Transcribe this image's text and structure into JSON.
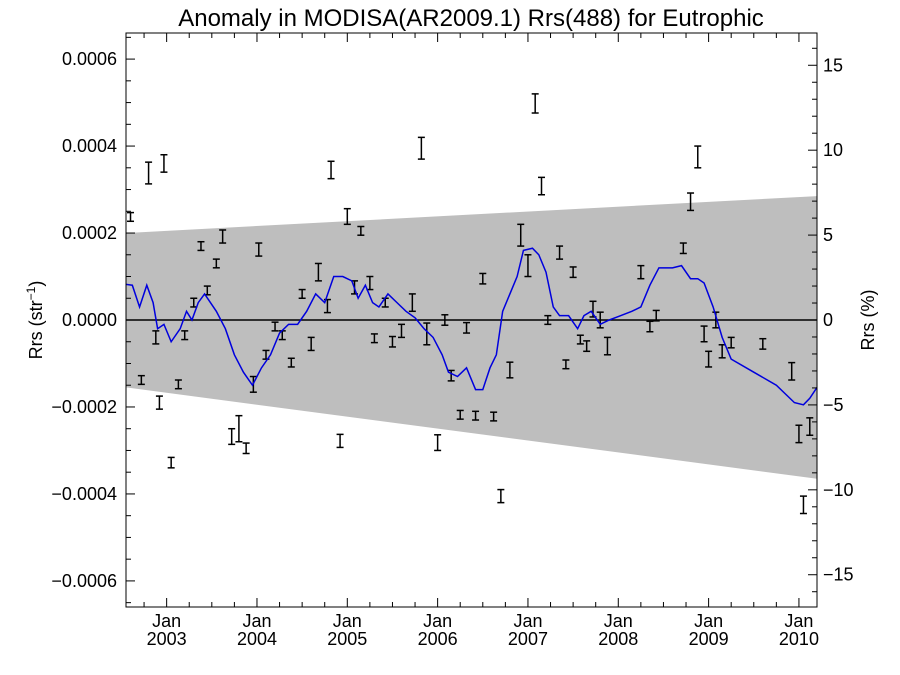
{
  "chart_data": {
    "type": "scatter",
    "title": "Anomaly in MODISA(AR2009.1) Rrs(488) for Eutrophic",
    "ylabel_left_main": "Rrs (str",
    "ylabel_left_sup": "−1",
    "ylabel_left_end": ")",
    "ylabel_right": "Rrs (%)",
    "xlim": [
      2002.55,
      2010.2
    ],
    "ylim_left": [
      -0.00066,
      0.00066
    ],
    "ylim_right": [
      -16.9,
      16.9
    ],
    "y_ticks_left": [
      {
        "value": 0.0006,
        "label": "0.0006"
      },
      {
        "value": 0.0004,
        "label": "0.0004"
      },
      {
        "value": 0.0002,
        "label": "0.0002"
      },
      {
        "value": 0.0,
        "label": "0.0000"
      },
      {
        "value": -0.0002,
        "label": "−0.0002"
      },
      {
        "value": -0.0004,
        "label": "−0.0004"
      },
      {
        "value": -0.0006,
        "label": "−0.0006"
      }
    ],
    "y_ticks_right": [
      {
        "value": 15,
        "label": "15"
      },
      {
        "value": 10,
        "label": "10"
      },
      {
        "value": 5,
        "label": "5"
      },
      {
        "value": 0,
        "label": "0"
      },
      {
        "value": -5,
        "label": "−5"
      },
      {
        "value": -10,
        "label": "−10"
      },
      {
        "value": -15,
        "label": "−15"
      }
    ],
    "x_ticks": [
      {
        "value": 2003.0,
        "month": "Jan",
        "year": "2003"
      },
      {
        "value": 2004.0,
        "month": "Jan",
        "year": "2004"
      },
      {
        "value": 2005.0,
        "month": "Jan",
        "year": "2005"
      },
      {
        "value": 2006.0,
        "month": "Jan",
        "year": "2006"
      },
      {
        "value": 2007.0,
        "month": "Jan",
        "year": "2007"
      },
      {
        "value": 2008.0,
        "month": "Jan",
        "year": "2008"
      },
      {
        "value": 2009.0,
        "month": "Jan",
        "year": "2009"
      },
      {
        "value": 2010.0,
        "month": "Jan",
        "year": "2010"
      }
    ],
    "band": {
      "upper": [
        [
          2002.55,
          0.0002
        ],
        [
          2010.2,
          0.000285
        ]
      ],
      "lower": [
        [
          2002.55,
          -0.000155
        ],
        [
          2010.2,
          -0.000365
        ]
      ]
    },
    "reference_line": 0.0,
    "points": [
      {
        "x": 2002.6,
        "y": 0.000237,
        "err": 1e-05
      },
      {
        "x": 2002.72,
        "y": -0.000138,
        "err": 1e-05
      },
      {
        "x": 2002.8,
        "y": 0.000338,
        "err": 2.5e-05
      },
      {
        "x": 2002.88,
        "y": -4e-05,
        "err": 1.5e-05
      },
      {
        "x": 2002.92,
        "y": -0.00019,
        "err": 1.5e-05
      },
      {
        "x": 2002.97,
        "y": 0.00036,
        "err": 2e-05
      },
      {
        "x": 2003.05,
        "y": -0.000328,
        "err": 1.2e-05
      },
      {
        "x": 2003.13,
        "y": -0.000148,
        "err": 1e-05
      },
      {
        "x": 2003.2,
        "y": -3.5e-05,
        "err": 1e-05
      },
      {
        "x": 2003.3,
        "y": 4e-05,
        "err": 1e-05
      },
      {
        "x": 2003.38,
        "y": 0.00017,
        "err": 1e-05
      },
      {
        "x": 2003.45,
        "y": 6.8e-05,
        "err": 1e-05
      },
      {
        "x": 2003.55,
        "y": 0.00013,
        "err": 1e-05
      },
      {
        "x": 2003.62,
        "y": 0.000192,
        "err": 1.5e-05
      },
      {
        "x": 2003.72,
        "y": -0.000268,
        "err": 1.8e-05
      },
      {
        "x": 2003.8,
        "y": -0.00025,
        "err": 3e-05
      },
      {
        "x": 2003.88,
        "y": -0.000295,
        "err": 1.2e-05
      },
      {
        "x": 2003.96,
        "y": -0.000148,
        "err": 1.8e-05
      },
      {
        "x": 2004.02,
        "y": 0.000162,
        "err": 1.5e-05
      },
      {
        "x": 2004.1,
        "y": -8e-05,
        "err": 1e-05
      },
      {
        "x": 2004.2,
        "y": -1.5e-05,
        "err": 1e-05
      },
      {
        "x": 2004.28,
        "y": -3.5e-05,
        "err": 1e-05
      },
      {
        "x": 2004.38,
        "y": -9.8e-05,
        "err": 1e-05
      },
      {
        "x": 2004.5,
        "y": 6e-05,
        "err": 1e-05
      },
      {
        "x": 2004.6,
        "y": -5.5e-05,
        "err": 1.5e-05
      },
      {
        "x": 2004.68,
        "y": 0.00011,
        "err": 2e-05
      },
      {
        "x": 2004.78,
        "y": 3.2e-05,
        "err": 1.5e-05
      },
      {
        "x": 2004.82,
        "y": 0.000345,
        "err": 2e-05
      },
      {
        "x": 2004.92,
        "y": -0.000278,
        "err": 1.5e-05
      },
      {
        "x": 2005.0,
        "y": 0.000238,
        "err": 1.8e-05
      },
      {
        "x": 2005.08,
        "y": 7.5e-05,
        "err": 1.5e-05
      },
      {
        "x": 2005.15,
        "y": 0.000205,
        "err": 1e-05
      },
      {
        "x": 2005.25,
        "y": 8.5e-05,
        "err": 1.5e-05
      },
      {
        "x": 2005.3,
        "y": -4.2e-05,
        "err": 1e-05
      },
      {
        "x": 2005.42,
        "y": 4e-05,
        "err": 1e-05
      },
      {
        "x": 2005.5,
        "y": -5e-05,
        "err": 1.2e-05
      },
      {
        "x": 2005.6,
        "y": -2.5e-05,
        "err": 1.5e-05
      },
      {
        "x": 2005.72,
        "y": 4e-05,
        "err": 2e-05
      },
      {
        "x": 2005.82,
        "y": 0.000395,
        "err": 2.5e-05
      },
      {
        "x": 2005.88,
        "y": -3.2e-05,
        "err": 2.5e-05
      },
      {
        "x": 2006.0,
        "y": -0.000282,
        "err": 1.8e-05
      },
      {
        "x": 2006.08,
        "y": 0.0,
        "err": 1.2e-05
      },
      {
        "x": 2006.15,
        "y": -0.000128,
        "err": 1.2e-05
      },
      {
        "x": 2006.25,
        "y": -0.000218,
        "err": 1e-05
      },
      {
        "x": 2006.32,
        "y": -1.8e-05,
        "err": 1.2e-05
      },
      {
        "x": 2006.42,
        "y": -0.00022,
        "err": 1e-05
      },
      {
        "x": 2006.5,
        "y": 9.5e-05,
        "err": 1.2e-05
      },
      {
        "x": 2006.62,
        "y": -0.000222,
        "err": 1e-05
      },
      {
        "x": 2006.7,
        "y": -0.000405,
        "err": 1.5e-05
      },
      {
        "x": 2006.8,
        "y": -0.000115,
        "err": 1.8e-05
      },
      {
        "x": 2006.92,
        "y": 0.000195,
        "err": 2.5e-05
      },
      {
        "x": 2007.0,
        "y": 0.000125,
        "err": 2.5e-05
      },
      {
        "x": 2007.08,
        "y": 0.000498,
        "err": 2.2e-05
      },
      {
        "x": 2007.15,
        "y": 0.000308,
        "err": 2e-05
      },
      {
        "x": 2007.22,
        "y": 0.0,
        "err": 1e-05
      },
      {
        "x": 2007.35,
        "y": 0.000155,
        "err": 1.5e-05
      },
      {
        "x": 2007.42,
        "y": -0.000102,
        "err": 1e-05
      },
      {
        "x": 2007.5,
        "y": 0.00011,
        "err": 1.2e-05
      },
      {
        "x": 2007.58,
        "y": -4.5e-05,
        "err": 1e-05
      },
      {
        "x": 2007.65,
        "y": -6e-05,
        "err": 1.2e-05
      },
      {
        "x": 2007.72,
        "y": 2.5e-05,
        "err": 1.8e-05
      },
      {
        "x": 2007.8,
        "y": 0.0,
        "err": 1.8e-05
      },
      {
        "x": 2007.88,
        "y": -6e-05,
        "err": 2e-05
      },
      {
        "x": 2008.25,
        "y": 0.00011,
        "err": 1.5e-05
      },
      {
        "x": 2008.35,
        "y": -1.5e-05,
        "err": 1.2e-05
      },
      {
        "x": 2008.42,
        "y": 1e-05,
        "err": 1.2e-05
      },
      {
        "x": 2008.72,
        "y": 0.000165,
        "err": 1.2e-05
      },
      {
        "x": 2008.8,
        "y": 0.000272,
        "err": 2e-05
      },
      {
        "x": 2008.88,
        "y": 0.000375,
        "err": 2.5e-05
      },
      {
        "x": 2008.95,
        "y": -3.2e-05,
        "err": 1.8e-05
      },
      {
        "x": 2009.0,
        "y": -9e-05,
        "err": 1.8e-05
      },
      {
        "x": 2009.08,
        "y": -0.0,
        "err": 1.8e-05
      },
      {
        "x": 2009.15,
        "y": -7.2e-05,
        "err": 1.5e-05
      },
      {
        "x": 2009.25,
        "y": -5.2e-05,
        "err": 1.2e-05
      },
      {
        "x": 2009.6,
        "y": -5.5e-05,
        "err": 1.2e-05
      },
      {
        "x": 2009.92,
        "y": -0.000118,
        "err": 2e-05
      },
      {
        "x": 2010.0,
        "y": -0.000262,
        "err": 2e-05
      },
      {
        "x": 2010.05,
        "y": -0.000425,
        "err": 2e-05
      },
      {
        "x": 2010.12,
        "y": -0.000245,
        "err": 2e-05
      }
    ],
    "smooth_line": [
      [
        2002.55,
        8.2e-05
      ],
      [
        2002.62,
        8e-05
      ],
      [
        2002.7,
        3e-05
      ],
      [
        2002.78,
        8e-05
      ],
      [
        2002.85,
        4e-05
      ],
      [
        2002.9,
        -2e-05
      ],
      [
        2002.97,
        -1e-05
      ],
      [
        2003.05,
        -5e-05
      ],
      [
        2003.15,
        -2e-05
      ],
      [
        2003.22,
        2e-05
      ],
      [
        2003.28,
        0.0
      ],
      [
        2003.35,
        4e-05
      ],
      [
        2003.42,
        6e-05
      ],
      [
        2003.55,
        2e-05
      ],
      [
        2003.65,
        -2e-05
      ],
      [
        2003.75,
        -8e-05
      ],
      [
        2003.85,
        -0.00012
      ],
      [
        2003.95,
        -0.00015
      ],
      [
        2004.05,
        -0.00011
      ],
      [
        2004.15,
        -8e-05
      ],
      [
        2004.25,
        -3e-05
      ],
      [
        2004.35,
        -1e-05
      ],
      [
        2004.45,
        -1e-05
      ],
      [
        2004.55,
        2e-05
      ],
      [
        2004.65,
        6e-05
      ],
      [
        2004.75,
        4e-05
      ],
      [
        2004.85,
        0.0001
      ],
      [
        2004.95,
        0.0001
      ],
      [
        2005.05,
        9e-05
      ],
      [
        2005.12,
        5e-05
      ],
      [
        2005.2,
        8e-05
      ],
      [
        2005.28,
        4e-05
      ],
      [
        2005.35,
        3e-05
      ],
      [
        2005.45,
        6e-05
      ],
      [
        2005.55,
        4e-05
      ],
      [
        2005.65,
        2e-05
      ],
      [
        2005.75,
        5e-06
      ],
      [
        2005.85,
        -2e-05
      ],
      [
        2005.95,
        -4e-05
      ],
      [
        2006.05,
        -8e-05
      ],
      [
        2006.12,
        -0.00012
      ],
      [
        2006.22,
        -0.00013
      ],
      [
        2006.32,
        -0.00011
      ],
      [
        2006.42,
        -0.00016
      ],
      [
        2006.5,
        -0.00016
      ],
      [
        2006.58,
        -0.00011
      ],
      [
        2006.65,
        -8e-05
      ],
      [
        2006.72,
        2e-05
      ],
      [
        2006.8,
        6e-05
      ],
      [
        2006.88,
        0.0001
      ],
      [
        2006.95,
        0.00016
      ],
      [
        2007.05,
        0.000165
      ],
      [
        2007.12,
        0.00015
      ],
      [
        2007.2,
        0.00011
      ],
      [
        2007.28,
        3e-05
      ],
      [
        2007.35,
        1e-05
      ],
      [
        2007.45,
        1e-05
      ],
      [
        2007.55,
        -2e-05
      ],
      [
        2007.62,
        1e-05
      ],
      [
        2007.7,
        2e-05
      ],
      [
        2007.8,
        -1e-05
      ],
      [
        2007.9,
        0.0
      ],
      [
        2008.0,
        8e-06
      ],
      [
        2008.15,
        2e-05
      ],
      [
        2008.25,
        3e-05
      ],
      [
        2008.35,
        8e-05
      ],
      [
        2008.45,
        0.00012
      ],
      [
        2008.6,
        0.00012
      ],
      [
        2008.7,
        0.000125
      ],
      [
        2008.8,
        9.5e-05
      ],
      [
        2008.88,
        9.5e-05
      ],
      [
        2008.95,
        8.5e-05
      ],
      [
        2009.05,
        3e-05
      ],
      [
        2009.15,
        -4e-05
      ],
      [
        2009.25,
        -9e-05
      ],
      [
        2009.5,
        -0.00012
      ],
      [
        2009.75,
        -0.00015
      ],
      [
        2009.95,
        -0.00019
      ],
      [
        2010.05,
        -0.000195
      ],
      [
        2010.12,
        -0.00018
      ],
      [
        2010.2,
        -0.000155
      ]
    ],
    "colors": {
      "band": "#bebebe",
      "smooth_line": "#0000dd",
      "points": "#000000",
      "reference_line": "#000000"
    }
  }
}
